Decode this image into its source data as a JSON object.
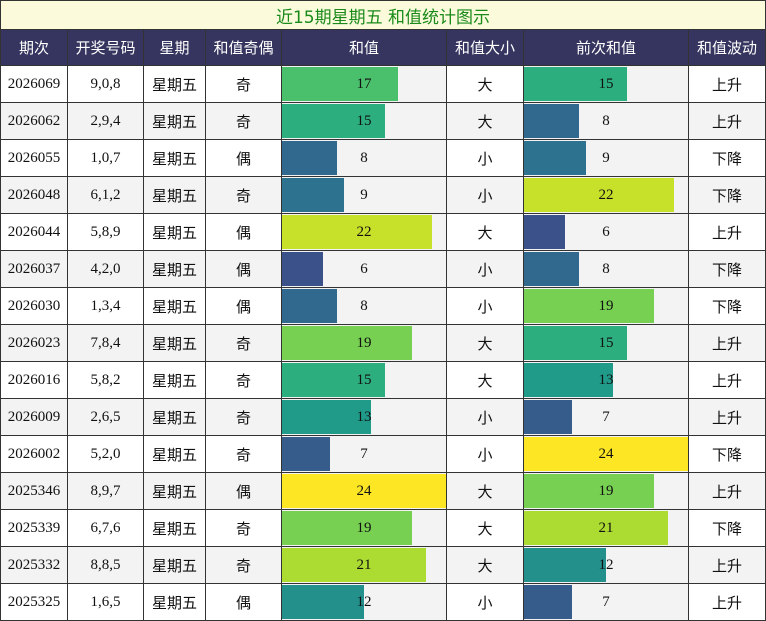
{
  "title": "近15期星期五 和值统计图示",
  "columns": [
    "期次",
    "开奖号码",
    "星期",
    "和值奇偶",
    "和值",
    "和值大小",
    "前次和值",
    "和值波动"
  ],
  "rows": [
    [
      "2026069",
      "9,0,8",
      "星期五",
      "奇",
      17,
      "大",
      15,
      "上升"
    ],
    [
      "2026062",
      "2,9,4",
      "星期五",
      "奇",
      15,
      "大",
      8,
      "上升"
    ],
    [
      "2026055",
      "1,0,7",
      "星期五",
      "偶",
      8,
      "小",
      9,
      "下降"
    ],
    [
      "2026048",
      "6,1,2",
      "星期五",
      "奇",
      9,
      "小",
      22,
      "下降"
    ],
    [
      "2026044",
      "5,8,9",
      "星期五",
      "偶",
      22,
      "大",
      6,
      "上升"
    ],
    [
      "2026037",
      "4,2,0",
      "星期五",
      "偶",
      6,
      "小",
      8,
      "下降"
    ],
    [
      "2026030",
      "1,3,4",
      "星期五",
      "偶",
      8,
      "小",
      19,
      "下降"
    ],
    [
      "2026023",
      "7,8,4",
      "星期五",
      "奇",
      19,
      "大",
      15,
      "上升"
    ],
    [
      "2026016",
      "5,8,2",
      "星期五",
      "奇",
      15,
      "大",
      13,
      "上升"
    ],
    [
      "2026009",
      "2,6,5",
      "星期五",
      "奇",
      13,
      "小",
      7,
      "上升"
    ],
    [
      "2026002",
      "5,2,0",
      "星期五",
      "奇",
      7,
      "小",
      24,
      "下降"
    ],
    [
      "2025346",
      "8,9,7",
      "星期五",
      "偶",
      24,
      "大",
      19,
      "上升"
    ],
    [
      "2025339",
      "6,7,6",
      "星期五",
      "奇",
      19,
      "大",
      21,
      "下降"
    ],
    [
      "2025332",
      "8,8,5",
      "星期五",
      "奇",
      21,
      "大",
      12,
      "上升"
    ],
    [
      "2025325",
      "1,6,5",
      "星期五",
      "偶",
      12,
      "小",
      7,
      "上升"
    ]
  ]
}
